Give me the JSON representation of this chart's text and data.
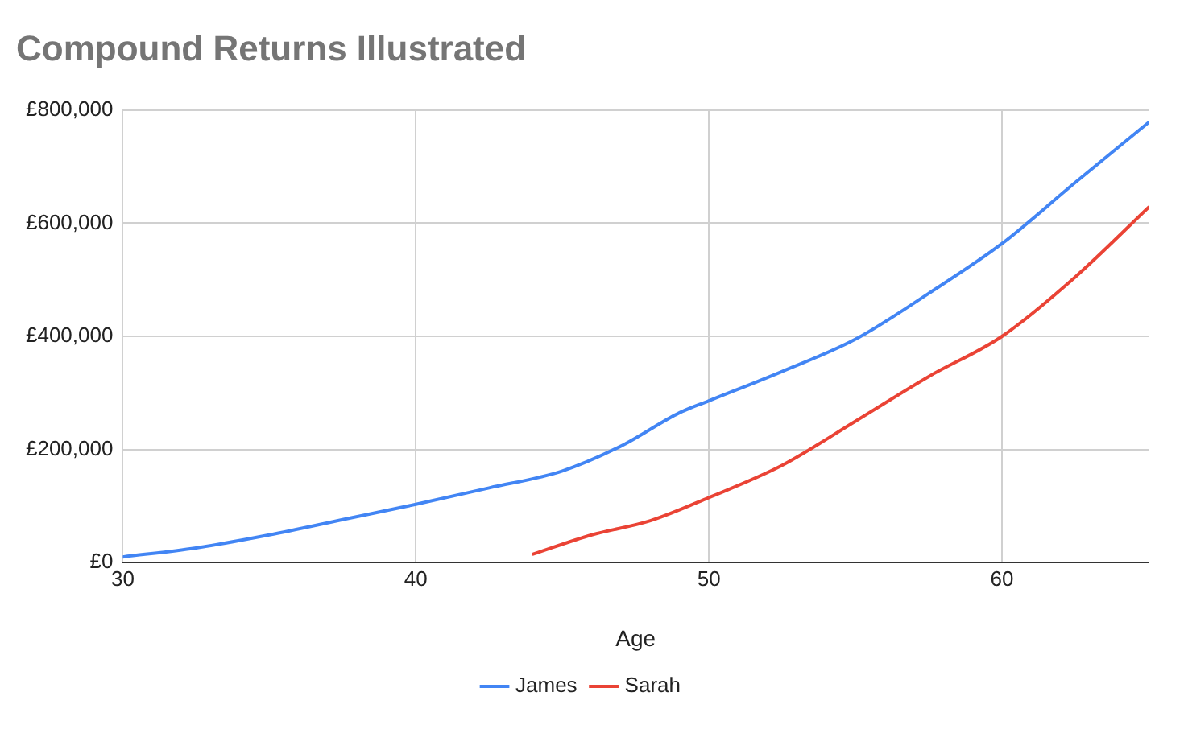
{
  "chart_data": {
    "type": "line",
    "title": "Compound Returns Illustrated",
    "xlabel": "Age",
    "xlim": [
      30,
      65
    ],
    "xticks": [
      30,
      40,
      50,
      60
    ],
    "ylim": [
      0,
      800000
    ],
    "yticks": [
      {
        "value": 0,
        "label": "£0"
      },
      {
        "value": 200000,
        "label": "£200,000"
      },
      {
        "value": 400000,
        "label": "£400,000"
      },
      {
        "value": 600000,
        "label": "£600,000"
      },
      {
        "value": 800000,
        "label": "£800,000"
      }
    ],
    "grid": true,
    "legend": "bottom",
    "marker": "none",
    "line_style": "solid",
    "series": [
      {
        "name": "James",
        "color": "#4285f4",
        "x": [
          30,
          32.5,
          35,
          37.5,
          40,
          42.5,
          45,
          47,
          49,
          50,
          52.5,
          55,
          57.5,
          60,
          62.5,
          65
        ],
        "values": [
          10000,
          26000,
          49000,
          76000,
          103000,
          132000,
          162000,
          206000,
          265000,
          286000,
          338000,
          395000,
          476000,
          564000,
          672000,
          778000
        ]
      },
      {
        "name": "Sarah",
        "color": "#ea4335",
        "x": [
          44,
          46,
          48,
          50,
          52.5,
          55,
          57.5,
          60,
          62.5,
          65
        ],
        "values": [
          15000,
          49000,
          74000,
          115000,
          172000,
          250000,
          329000,
          400000,
          505000,
          628000
        ]
      }
    ]
  }
}
